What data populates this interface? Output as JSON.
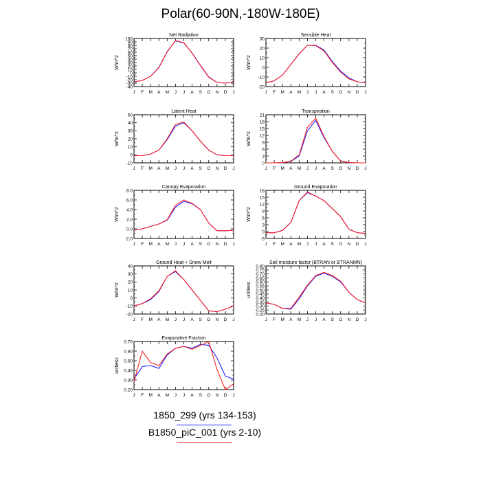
{
  "page": {
    "title": "Polar(60-90N,-180W-180E)"
  },
  "legend": [
    {
      "label": "1850_299 (yrs 134-153)",
      "color": "#1f1fff"
    },
    {
      "label": "B1850_piC_001 (yrs 2-10)",
      "color": "#ff1f1f"
    }
  ],
  "chart_data": [
    {
      "type": "line",
      "title": "Net Radiation",
      "ylabel": "W/m^2",
      "categories": [
        "J",
        "F",
        "M",
        "A",
        "M",
        "J",
        "J",
        "A",
        "S",
        "O",
        "N",
        "D",
        "J"
      ],
      "ylim": [
        -40,
        100
      ],
      "yticks": [
        "-40",
        "-30",
        "-20",
        "-10",
        "0",
        "10",
        "20",
        "30",
        "40",
        "50",
        "60",
        "70",
        "80",
        "90",
        "100"
      ],
      "series": [
        {
          "name": "1850_299 (yrs 134-153)",
          "color": "#1f1fff",
          "values": [
            -27,
            -22,
            -10,
            16,
            62,
            93,
            87,
            58,
            22,
            -12,
            -28,
            -30,
            -27
          ]
        },
        {
          "name": "B1850_piC_001 (yrs 2-10)",
          "color": "#ff1f1f",
          "values": [
            -27,
            -22,
            -10,
            15,
            61,
            94,
            88,
            57,
            21,
            -13,
            -28,
            -30,
            -27
          ]
        }
      ]
    },
    {
      "type": "line",
      "title": "Sensible Heat",
      "ylabel": "W/m^2",
      "categories": [
        "J",
        "F",
        "M",
        "A",
        "M",
        "J",
        "J",
        "A",
        "S",
        "O",
        "N",
        "D",
        "J"
      ],
      "ylim": [
        -20,
        30
      ],
      "yticks": [
        "-20",
        "-10",
        "0",
        "10",
        "20",
        "30"
      ],
      "series": [
        {
          "name": "1850_299 (yrs 134-153)",
          "color": "#1f1fff",
          "values": [
            -16,
            -14,
            -8,
            3,
            14,
            23,
            23,
            18,
            6,
            -4,
            -11,
            -15,
            -16
          ]
        },
        {
          "name": "B1850_piC_001 (yrs 2-10)",
          "color": "#ff1f1f",
          "values": [
            -16,
            -14,
            -8,
            3,
            14,
            23,
            22.5,
            17,
            5,
            -5,
            -12,
            -15,
            -16
          ]
        }
      ]
    },
    {
      "type": "line",
      "title": "Latent Heat",
      "ylabel": "W/m^2",
      "categories": [
        "J",
        "F",
        "M",
        "A",
        "M",
        "J",
        "J",
        "A",
        "S",
        "O",
        "N",
        "D",
        "J"
      ],
      "ylim": [
        -10,
        50
      ],
      "yticks": [
        "-10",
        "0",
        "10",
        "20",
        "30",
        "40",
        "50"
      ],
      "series": [
        {
          "name": "1850_299 (yrs 134-153)",
          "color": "#1f1fff",
          "values": [
            -1,
            -1,
            1,
            6,
            19,
            36,
            40,
            30,
            17,
            6,
            0,
            -1,
            -1
          ]
        },
        {
          "name": "B1850_piC_001 (yrs 2-10)",
          "color": "#ff1f1f",
          "values": [
            -1,
            -1,
            1,
            6,
            20,
            38,
            41,
            30,
            17,
            6,
            0,
            -1,
            -1
          ]
        }
      ]
    },
    {
      "type": "line",
      "title": "Transpiration",
      "ylabel": "W/m^2",
      "categories": [
        "J",
        "F",
        "M",
        "A",
        "M",
        "J",
        "J",
        "A",
        "S",
        "O",
        "N",
        "D",
        "J"
      ],
      "ylim": [
        0,
        21
      ],
      "yticks": [
        "0",
        "3",
        "6",
        "9",
        "12",
        "15",
        "18",
        "21"
      ],
      "series": [
        {
          "name": "1850_299 (yrs 134-153)",
          "color": "#1f1fff",
          "values": [
            0,
            0,
            0.1,
            0.6,
            3,
            14,
            18.5,
            11,
            5,
            0.8,
            0.1,
            0,
            0
          ]
        },
        {
          "name": "B1850_piC_001 (yrs 2-10)",
          "color": "#ff1f1f",
          "values": [
            0,
            0,
            0.1,
            0.7,
            3.5,
            15.5,
            19.5,
            11.5,
            5,
            0.8,
            0.1,
            0,
            0
          ]
        }
      ]
    },
    {
      "type": "line",
      "title": "Canopy Evaporation",
      "ylabel": "W/m^2",
      "categories": [
        "J",
        "F",
        "M",
        "A",
        "M",
        "J",
        "J",
        "A",
        "S",
        "O",
        "N",
        "D",
        "J"
      ],
      "ylim": [
        -2,
        8
      ],
      "yticks": [
        "-2.0",
        "0.0",
        "2.0",
        "4.0",
        "6.0",
        "8.0"
      ],
      "series": [
        {
          "name": "1850_299 (yrs 134-153)",
          "color": "#1f1fff",
          "values": [
            -0.3,
            0,
            0.5,
            1,
            1.8,
            4.5,
            5.7,
            5.2,
            4,
            1.2,
            -0.4,
            -0.4,
            -0.3
          ]
        },
        {
          "name": "B1850_piC_001 (yrs 2-10)",
          "color": "#ff1f1f",
          "values": [
            -0.3,
            0,
            0.5,
            1,
            1.9,
            4.9,
            6,
            5.3,
            4,
            1.2,
            -0.4,
            -0.4,
            -0.3
          ]
        }
      ]
    },
    {
      "type": "line",
      "title": "Ground Evaporation",
      "ylabel": "W/m^2",
      "categories": [
        "J",
        "F",
        "M",
        "A",
        "M",
        "J",
        "J",
        "A",
        "S",
        "O",
        "N",
        "D",
        "J"
      ],
      "ylim": [
        -3,
        18
      ],
      "yticks": [
        "-3",
        "0",
        "3",
        "6",
        "9",
        "12",
        "15",
        "18"
      ],
      "series": [
        {
          "name": "1850_299 (yrs 134-153)",
          "color": "#1f1fff",
          "values": [
            -0.5,
            -0.5,
            0.5,
            4,
            13.5,
            17,
            15.5,
            13.5,
            10,
            6.5,
            1,
            -0.5,
            -0.8
          ]
        },
        {
          "name": "B1850_piC_001 (yrs 2-10)",
          "color": "#ff1f1f",
          "values": [
            -0.5,
            -0.5,
            0.5,
            4,
            13.5,
            17.3,
            15.5,
            13.5,
            10,
            6.5,
            1,
            -0.5,
            -0.8
          ]
        }
      ]
    },
    {
      "type": "line",
      "title": "Ground Heat + Snow Melt",
      "ylabel": "W/m^2",
      "categories": [
        "J",
        "F",
        "M",
        "A",
        "M",
        "J",
        "J",
        "A",
        "S",
        "O",
        "N",
        "D",
        "J"
      ],
      "ylim": [
        -20,
        40
      ],
      "yticks": [
        "-20",
        "-10",
        "0",
        "10",
        "20",
        "30",
        "40"
      ],
      "series": [
        {
          "name": "1850_299 (yrs 134-153)",
          "color": "#1f1fff",
          "values": [
            -10,
            -7,
            -2,
            8,
            27,
            33,
            23,
            10,
            -3,
            -16,
            -17,
            -14,
            -10
          ]
        },
        {
          "name": "B1850_piC_001 (yrs 2-10)",
          "color": "#ff1f1f",
          "values": [
            -10,
            -7,
            -1,
            9,
            27,
            34,
            23,
            10,
            -3,
            -16,
            -17,
            -14,
            -10
          ]
        }
      ]
    },
    {
      "type": "line",
      "title": "Soil moisture factor (BTRAN or BTRANMN)",
      "ylabel": "unitless",
      "categories": [
        "J",
        "F",
        "M",
        "A",
        "M",
        "J",
        "J",
        "A",
        "S",
        "O",
        "N",
        "D",
        "J"
      ],
      "ylim": [
        0.2,
        0.8
      ],
      "yticks": [
        "0.20",
        "0.25",
        "0.30",
        "0.35",
        "0.40",
        "0.45",
        "0.50",
        "0.55",
        "0.60",
        "0.65",
        "0.70",
        "0.75",
        "0.80"
      ],
      "series": [
        {
          "name": "1850_299 (yrs 134-153)",
          "color": "#1f1fff",
          "values": [
            0.34,
            0.32,
            0.27,
            0.26,
            0.39,
            0.55,
            0.67,
            0.71,
            0.67,
            0.6,
            0.47,
            0.38,
            0.34
          ]
        },
        {
          "name": "B1850_piC_001 (yrs 2-10)",
          "color": "#ff1f1f",
          "values": [
            0.34,
            0.32,
            0.27,
            0.27,
            0.41,
            0.56,
            0.68,
            0.72,
            0.68,
            0.61,
            0.47,
            0.38,
            0.34
          ]
        }
      ]
    },
    {
      "type": "line",
      "title": "Evaporative Fraction",
      "ylabel": "unitless",
      "categories": [
        "J",
        "F",
        "M",
        "A",
        "M",
        "J",
        "J",
        "A",
        "S",
        "O",
        "N",
        "D",
        "J"
      ],
      "ylim": [
        0.2,
        0.7
      ],
      "yticks": [
        "0.20",
        "0.30",
        "0.40",
        "0.50",
        "0.60",
        "0.70"
      ],
      "series": [
        {
          "name": "1850_299 (yrs 134-153)",
          "color": "#1f1fff",
          "values": [
            0.31,
            0.44,
            0.45,
            0.42,
            0.56,
            0.63,
            0.65,
            0.63,
            0.67,
            0.66,
            0.53,
            0.34,
            0.31
          ]
        },
        {
          "name": "B1850_piC_001 (yrs 2-10)",
          "color": "#ff1f1f",
          "values": [
            0.28,
            0.6,
            0.48,
            0.45,
            0.57,
            0.63,
            0.65,
            0.62,
            0.66,
            0.7,
            0.41,
            0.2,
            0.26
          ]
        }
      ]
    }
  ]
}
